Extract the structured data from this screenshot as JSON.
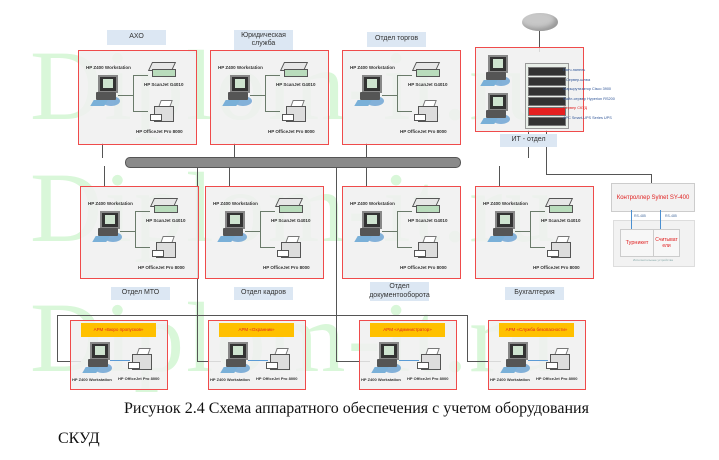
{
  "watermark": "Diplom-it.ru",
  "devices": {
    "workstation": "HP Z400 Workstation",
    "scanner": "HP ScanJet G4010",
    "printer": "HP OfficeJet Pro 8000"
  },
  "departments_top": [
    {
      "label": "АХО"
    },
    {
      "label": "Юридическая служба"
    },
    {
      "label": "Отдел торгов"
    }
  ],
  "departments_mid": [
    {
      "label": "Отдел МТО"
    },
    {
      "label": "Отдел кадров"
    },
    {
      "label": "Отдел документооборота"
    },
    {
      "label": "Бухгалтерия"
    }
  ],
  "arm_stations": [
    {
      "label": "АРМ «Бюро пропусков»"
    },
    {
      "label": "АРМ «Охранник»"
    },
    {
      "label": "АРМ «Администратор»"
    },
    {
      "label": "АРМ «Служба безопасности»"
    }
  ],
  "it": {
    "label": "ИТ - отдел",
    "rack": [
      "Патч-панель",
      "Сервер-шлюз",
      "Маршрутизатор Cisco 3900",
      "Файл-сервер Hyperion RS200",
      "Сервер СКУД",
      "APC Smart-UPS Series UPS"
    ]
  },
  "skud": {
    "controller": "Контроллер Sylnet SY-400",
    "bus_a": "RS-485",
    "bus_b": "RS-485",
    "turnstile": "Турникет",
    "readers": "Считыватели",
    "group": "Исполнительные устройства"
  },
  "caption": {
    "line1": "Рисунок 2.4 Схема аппаратного обеспечения с учетом оборудования",
    "line2": "СКУД"
  },
  "colors": {
    "box_border": "#ef4b4b",
    "label_bg": "#dce7f3",
    "arm_bg": "#ffc000",
    "arm_text": "#e02020",
    "watermark": "#d9f7d9"
  }
}
